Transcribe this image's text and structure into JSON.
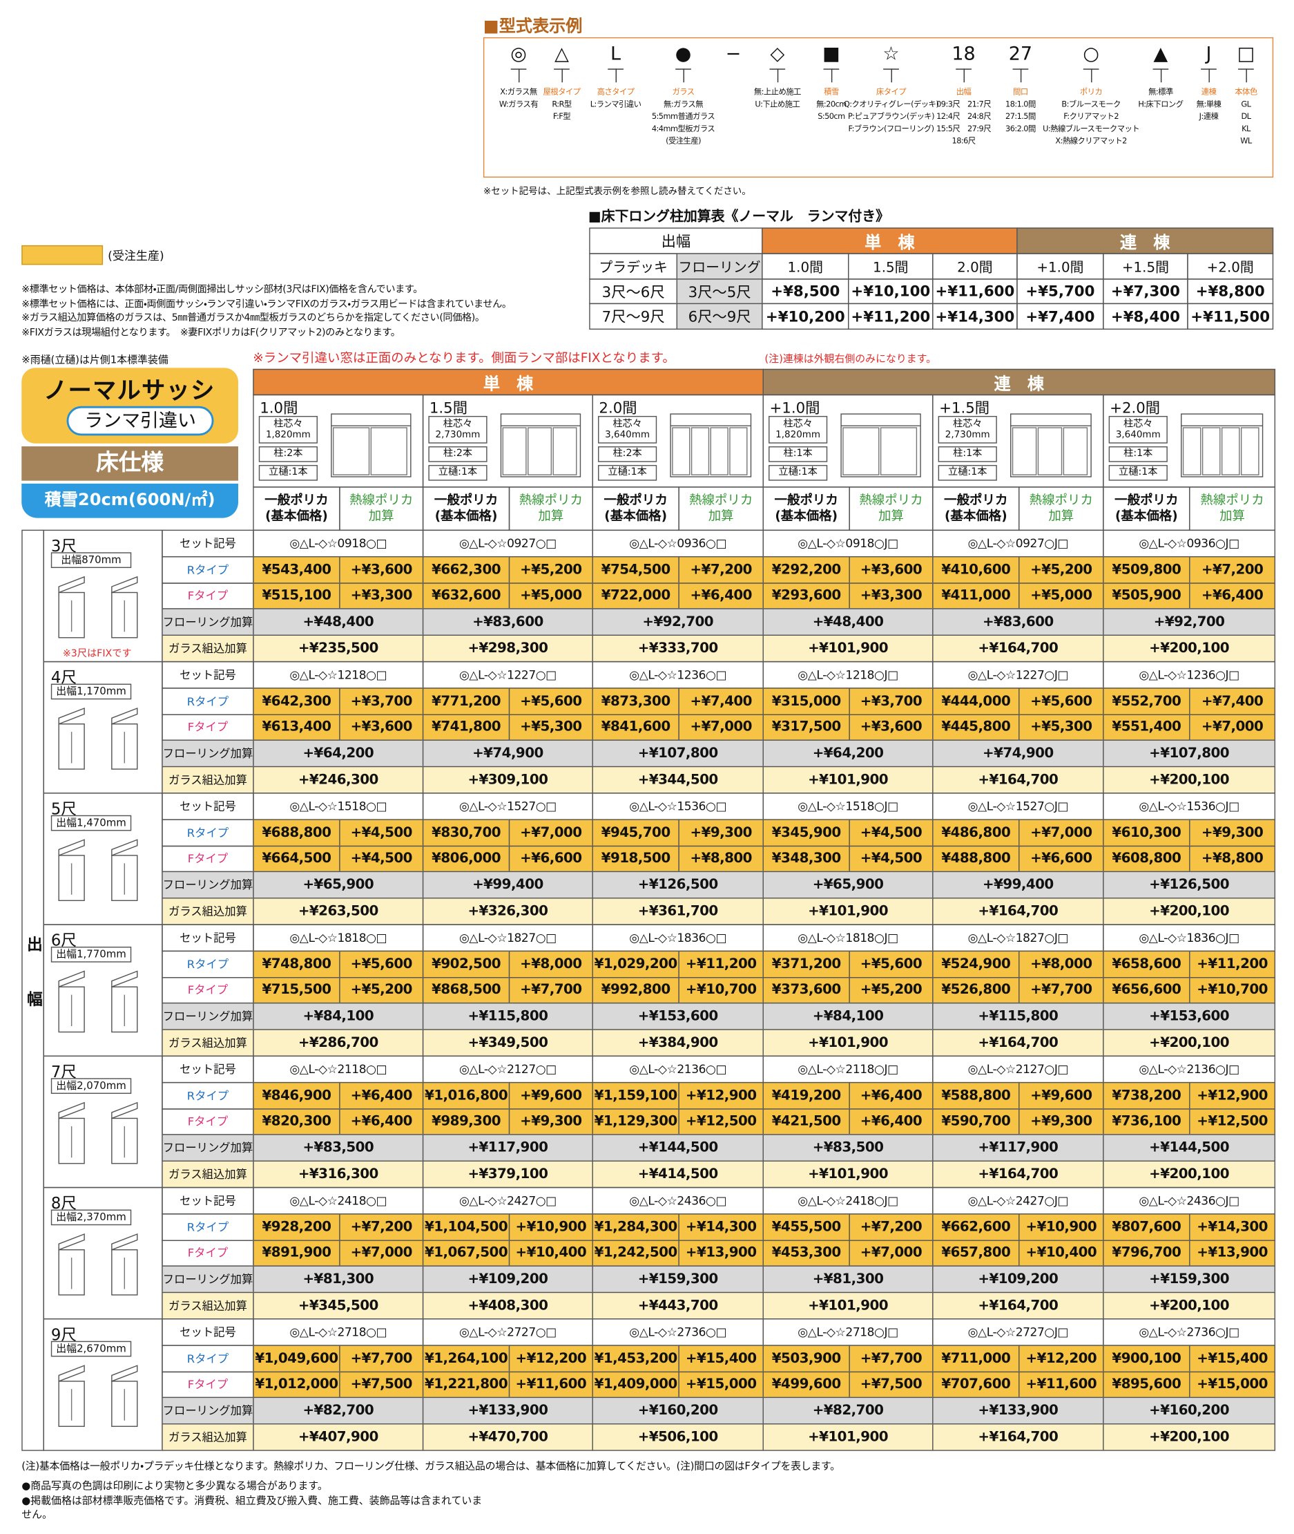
{
  "model_example": {
    "title": "■型式表示例",
    "items": [
      {
        "symbol": "◎",
        "options": [
          "X:ガラス無",
          "W:ガラス有"
        ]
      },
      {
        "symbol": "△",
        "category": "屋根タイプ",
        "options": [
          "R:R型",
          "F:F型"
        ]
      },
      {
        "symbol": "L",
        "category": "高さタイプ",
        "options": [
          "L:ランマ引違い"
        ]
      },
      {
        "symbol": "●",
        "category": "ガラス",
        "options": [
          "無:ガラス無",
          "5:5mm普通ガラス",
          "4:4mm型板ガラス",
          "(受注生産)"
        ]
      },
      {
        "symbol": "−"
      },
      {
        "symbol": "◇",
        "options": [
          "無:上止め施工",
          "U:下止め施工"
        ]
      },
      {
        "symbol": "■",
        "category": "積雪",
        "options": [
          "無:20cm",
          "S:50cm"
        ]
      },
      {
        "symbol": "☆",
        "category": "床タイプ",
        "options": [
          "Q:クオリティグレー(デッキ)",
          "P:ピュアブラウン(デッキ)",
          "F:ブラウン(フローリング)"
        ]
      },
      {
        "symbol": "18",
        "category": "出幅",
        "options": [
          "09:3尺　21:7尺",
          "12:4尺　24:8尺",
          "15:5尺　27:9尺",
          "18:6尺"
        ]
      },
      {
        "symbol": "27",
        "category": "間口",
        "options": [
          "18:1.0間",
          "27:1.5間",
          "36:2.0間"
        ]
      },
      {
        "symbol": "○",
        "category": "ポリカ",
        "options": [
          "B:ブルースモーク",
          "F:クリアマット2",
          "U:熱線ブルースモークマット",
          "X:熱線クリアマット2"
        ]
      },
      {
        "symbol": "▲",
        "options": [
          "無:標準",
          "H:床下ロング"
        ]
      },
      {
        "symbol": "J",
        "category": "連棟",
        "options": [
          "無:単棟",
          "J:連棟"
        ]
      },
      {
        "symbol": "□",
        "category": "本体色",
        "options": [
          "GL",
          "DL",
          "KL",
          "WL"
        ]
      }
    ],
    "note": "※セット記号は、上記型式表示例を参照し読み替えてください。"
  },
  "floor_long_table": {
    "title": "■床下ロング柱加算表《ノーマル　ランマ付き》",
    "header": {
      "width": "出幅",
      "single": "単　棟",
      "connected": "連　棟"
    },
    "subheader": [
      "プラデッキ",
      "フローリング",
      "1.0間",
      "1.5間",
      "2.0間",
      "+1.0間",
      "+1.5間",
      "+2.0間"
    ],
    "rows": [
      [
        "3尺〜6尺",
        "3尺〜5尺",
        "+¥8,500",
        "+¥10,100",
        "+¥11,600",
        "+¥5,700",
        "+¥7,300",
        "+¥8,800"
      ],
      [
        "7尺〜9尺",
        "6尺〜9尺",
        "+¥10,200",
        "+¥11,200",
        "+¥14,300",
        "+¥7,400",
        "+¥8,400",
        "+¥11,500"
      ]
    ]
  },
  "legend": {
    "label": "(受注生産)"
  },
  "notes": [
    "※標準セット価格は、本体部材・正面/両側面掃出しサッシ部材(3尺はFIX)価格を含んでいます。",
    "※標準セット価格には、正面・両側面サッシ・ランマ引違い・ランマFIXのガラス・ガラス用ビードは含まれていません。",
    "※ガラス組込加算価格のガラスは、5㎜普通ガラスか4㎜型板ガラスのどちらかを指定してください(同価格)。",
    "※FIXガラスは現場組付となります。　※妻FIXポリカはF(クリアマット2)のみとなります。"
  ],
  "gutter_note": "※雨樋(立樋)は片側1本標準装備",
  "lanma_note": "※ランマ引違い窓は正面のみとなります。側面ランマ部はFIXとなります。",
  "connected_note": "(注)連棟は外観右側のみになります。",
  "badge": {
    "sash": "ノーマルサッシ",
    "lanma": "ランマ引違い",
    "floor": "床仕様",
    "snow": "積雪20cm(600N/㎡)"
  },
  "price_table": {
    "width_label": "出幅",
    "single": "単　棟",
    "connected": "連　棟",
    "columns": [
      {
        "span": "1.0間",
        "pitch_label": "柱芯々",
        "pitch": "1,820mm",
        "posts": "柱:2本",
        "gutter": "立樋:1本"
      },
      {
        "span": "1.5間",
        "pitch_label": "柱芯々",
        "pitch": "2,730mm",
        "posts": "柱:2本",
        "gutter": "立樋:1本"
      },
      {
        "span": "2.0間",
        "pitch_label": "柱芯々",
        "pitch": "3,640mm",
        "posts": "柱:2本",
        "gutter": "立樋:1本"
      },
      {
        "span": "+1.0間",
        "pitch_label": "柱芯々",
        "pitch": "1,820mm",
        "posts": "柱:1本",
        "gutter": "立樋:1本"
      },
      {
        "span": "+1.5間",
        "pitch_label": "柱芯々",
        "pitch": "2,730mm",
        "posts": "柱:1本",
        "gutter": "立樋:1本"
      },
      {
        "span": "+2.0間",
        "pitch_label": "柱芯々",
        "pitch": "3,640mm",
        "posts": "柱:1本",
        "gutter": "立樋:1本"
      }
    ],
    "base_header": [
      "一般ポリカ",
      "(基本価格)"
    ],
    "add_header": [
      "熱線ポリカ",
      "加算"
    ],
    "row_labels": [
      "セット記号",
      "Rタイプ",
      "Fタイプ",
      "フローリング加算",
      "ガラス組込加算"
    ],
    "groups": [
      {
        "size": "3尺",
        "width": "出幅870mm",
        "note": "※3尺はFIXです",
        "set_codes": [
          "◎△L-◇☆0918○□",
          "◎△L-◇☆0927○□",
          "◎△L-◇☆0936○□",
          "◎△L-◇☆0918○J□",
          "◎△L-◇☆0927○J□",
          "◎△L-◇☆0936○J□"
        ],
        "r_type": [
          [
            "¥543,400",
            "+¥3,600"
          ],
          [
            "¥662,300",
            "+¥5,200"
          ],
          [
            "¥754,500",
            "+¥7,200"
          ],
          [
            "¥292,200",
            "+¥3,600"
          ],
          [
            "¥410,600",
            "+¥5,200"
          ],
          [
            "¥509,800",
            "+¥7,200"
          ]
        ],
        "f_type": [
          [
            "¥515,100",
            "+¥3,300"
          ],
          [
            "¥632,600",
            "+¥5,000"
          ],
          [
            "¥722,000",
            "+¥6,400"
          ],
          [
            "¥293,600",
            "+¥3,300"
          ],
          [
            "¥411,000",
            "+¥5,000"
          ],
          [
            "¥505,900",
            "+¥6,400"
          ]
        ],
        "flooring": [
          "+¥48,400",
          "+¥83,600",
          "+¥92,700",
          "+¥48,400",
          "+¥83,600",
          "+¥92,700"
        ],
        "glass": [
          "+¥235,500",
          "+¥298,300",
          "+¥333,700",
          "+¥101,900",
          "+¥164,700",
          "+¥200,100"
        ]
      },
      {
        "size": "4尺",
        "width": "出幅1,170mm",
        "set_codes": [
          "◎△L-◇☆1218○□",
          "◎△L-◇☆1227○□",
          "◎△L-◇☆1236○□",
          "◎△L-◇☆1218○J□",
          "◎△L-◇☆1227○J□",
          "◎△L-◇☆1236○J□"
        ],
        "r_type": [
          [
            "¥642,300",
            "+¥3,700"
          ],
          [
            "¥771,200",
            "+¥5,600"
          ],
          [
            "¥873,300",
            "+¥7,400"
          ],
          [
            "¥315,000",
            "+¥3,700"
          ],
          [
            "¥444,000",
            "+¥5,600"
          ],
          [
            "¥552,700",
            "+¥7,400"
          ]
        ],
        "f_type": [
          [
            "¥613,400",
            "+¥3,600"
          ],
          [
            "¥741,800",
            "+¥5,300"
          ],
          [
            "¥841,600",
            "+¥7,000"
          ],
          [
            "¥317,500",
            "+¥3,600"
          ],
          [
            "¥445,800",
            "+¥5,300"
          ],
          [
            "¥551,400",
            "+¥7,000"
          ]
        ],
        "flooring": [
          "+¥64,200",
          "+¥74,900",
          "+¥107,800",
          "+¥64,200",
          "+¥74,900",
          "+¥107,800"
        ],
        "glass": [
          "+¥246,300",
          "+¥309,100",
          "+¥344,500",
          "+¥101,900",
          "+¥164,700",
          "+¥200,100"
        ]
      },
      {
        "size": "5尺",
        "width": "出幅1,470mm",
        "set_codes": [
          "◎△L-◇☆1518○□",
          "◎△L-◇☆1527○□",
          "◎△L-◇☆1536○□",
          "◎△L-◇☆1518○J□",
          "◎△L-◇☆1527○J□",
          "◎△L-◇☆1536○J□"
        ],
        "r_type": [
          [
            "¥688,800",
            "+¥4,500"
          ],
          [
            "¥830,700",
            "+¥7,000"
          ],
          [
            "¥945,700",
            "+¥9,300"
          ],
          [
            "¥345,900",
            "+¥4,500"
          ],
          [
            "¥486,800",
            "+¥7,000"
          ],
          [
            "¥610,300",
            "+¥9,300"
          ]
        ],
        "f_type": [
          [
            "¥664,500",
            "+¥4,500"
          ],
          [
            "¥806,000",
            "+¥6,600"
          ],
          [
            "¥918,500",
            "+¥8,800"
          ],
          [
            "¥348,300",
            "+¥4,500"
          ],
          [
            "¥488,800",
            "+¥6,600"
          ],
          [
            "¥608,800",
            "+¥8,800"
          ]
        ],
        "flooring": [
          "+¥65,900",
          "+¥99,400",
          "+¥126,500",
          "+¥65,900",
          "+¥99,400",
          "+¥126,500"
        ],
        "glass": [
          "+¥263,500",
          "+¥326,300",
          "+¥361,700",
          "+¥101,900",
          "+¥164,700",
          "+¥200,100"
        ]
      },
      {
        "size": "6尺",
        "width": "出幅1,770mm",
        "set_codes": [
          "◎△L-◇☆1818○□",
          "◎△L-◇☆1827○□",
          "◎△L-◇☆1836○□",
          "◎△L-◇☆1818○J□",
          "◎△L-◇☆1827○J□",
          "◎△L-◇☆1836○J□"
        ],
        "r_type": [
          [
            "¥748,800",
            "+¥5,600"
          ],
          [
            "¥902,500",
            "+¥8,000"
          ],
          [
            "¥1,029,200",
            "+¥11,200"
          ],
          [
            "¥371,200",
            "+¥5,600"
          ],
          [
            "¥524,900",
            "+¥8,000"
          ],
          [
            "¥658,600",
            "+¥11,200"
          ]
        ],
        "f_type": [
          [
            "¥715,500",
            "+¥5,200"
          ],
          [
            "¥868,500",
            "+¥7,700"
          ],
          [
            "¥992,800",
            "+¥10,700"
          ],
          [
            "¥373,600",
            "+¥5,200"
          ],
          [
            "¥526,800",
            "+¥7,700"
          ],
          [
            "¥656,600",
            "+¥10,700"
          ]
        ],
        "flooring": [
          "+¥84,100",
          "+¥115,800",
          "+¥153,600",
          "+¥84,100",
          "+¥115,800",
          "+¥153,600"
        ],
        "glass": [
          "+¥286,700",
          "+¥349,500",
          "+¥384,900",
          "+¥101,900",
          "+¥164,700",
          "+¥200,100"
        ]
      },
      {
        "size": "7尺",
        "width": "出幅2,070mm",
        "set_codes": [
          "◎△L-◇☆2118○□",
          "◎△L-◇☆2127○□",
          "◎△L-◇☆2136○□",
          "◎△L-◇☆2118○J□",
          "◎△L-◇☆2127○J□",
          "◎△L-◇☆2136○J□"
        ],
        "r_type": [
          [
            "¥846,900",
            "+¥6,400"
          ],
          [
            "¥1,016,800",
            "+¥9,600"
          ],
          [
            "¥1,159,100",
            "+¥12,900"
          ],
          [
            "¥419,200",
            "+¥6,400"
          ],
          [
            "¥588,800",
            "+¥9,600"
          ],
          [
            "¥738,200",
            "+¥12,900"
          ]
        ],
        "f_type": [
          [
            "¥820,300",
            "+¥6,400"
          ],
          [
            "¥989,300",
            "+¥9,300"
          ],
          [
            "¥1,129,300",
            "+¥12,500"
          ],
          [
            "¥421,500",
            "+¥6,400"
          ],
          [
            "¥590,700",
            "+¥9,300"
          ],
          [
            "¥736,100",
            "+¥12,500"
          ]
        ],
        "flooring": [
          "+¥83,500",
          "+¥117,900",
          "+¥144,500",
          "+¥83,500",
          "+¥117,900",
          "+¥144,500"
        ],
        "glass": [
          "+¥316,300",
          "+¥379,100",
          "+¥414,500",
          "+¥101,900",
          "+¥164,700",
          "+¥200,100"
        ]
      },
      {
        "size": "8尺",
        "width": "出幅2,370mm",
        "set_codes": [
          "◎△L-◇☆2418○□",
          "◎△L-◇☆2427○□",
          "◎△L-◇☆2436○□",
          "◎△L-◇☆2418○J□",
          "◎△L-◇☆2427○J□",
          "◎△L-◇☆2436○J□"
        ],
        "r_type": [
          [
            "¥928,200",
            "+¥7,200"
          ],
          [
            "¥1,104,500",
            "+¥10,900"
          ],
          [
            "¥1,284,300",
            "+¥14,300"
          ],
          [
            "¥455,500",
            "+¥7,200"
          ],
          [
            "¥662,600",
            "+¥10,900"
          ],
          [
            "¥807,600",
            "+¥14,300"
          ]
        ],
        "f_type": [
          [
            "¥891,900",
            "+¥7,000"
          ],
          [
            "¥1,067,500",
            "+¥10,400"
          ],
          [
            "¥1,242,500",
            "+¥13,900"
          ],
          [
            "¥453,300",
            "+¥7,000"
          ],
          [
            "¥657,800",
            "+¥10,400"
          ],
          [
            "¥796,700",
            "+¥13,900"
          ]
        ],
        "flooring": [
          "+¥81,300",
          "+¥109,200",
          "+¥159,300",
          "+¥81,300",
          "+¥109,200",
          "+¥159,300"
        ],
        "glass": [
          "+¥345,500",
          "+¥408,300",
          "+¥443,700",
          "+¥101,900",
          "+¥164,700",
          "+¥200,100"
        ]
      },
      {
        "size": "9尺",
        "width": "出幅2,670mm",
        "set_codes": [
          "◎△L-◇☆2718○□",
          "◎△L-◇☆2727○□",
          "◎△L-◇☆2736○□",
          "◎△L-◇☆2718○J□",
          "◎△L-◇☆2727○J□",
          "◎△L-◇☆2736○J□"
        ],
        "r_type": [
          [
            "¥1,049,600",
            "+¥7,700"
          ],
          [
            "¥1,264,100",
            "+¥12,200"
          ],
          [
            "¥1,453,200",
            "+¥15,400"
          ],
          [
            "¥503,900",
            "+¥7,700"
          ],
          [
            "¥711,000",
            "+¥12,200"
          ],
          [
            "¥900,100",
            "+¥15,400"
          ]
        ],
        "f_type": [
          [
            "¥1,012,000",
            "+¥7,500"
          ],
          [
            "¥1,221,800",
            "+¥11,600"
          ],
          [
            "¥1,409,000",
            "+¥15,000"
          ],
          [
            "¥499,600",
            "+¥7,500"
          ],
          [
            "¥707,600",
            "+¥11,600"
          ],
          [
            "¥895,600",
            "+¥15,000"
          ]
        ],
        "flooring": [
          "+¥82,700",
          "+¥133,900",
          "+¥160,200",
          "+¥82,700",
          "+¥133,900",
          "+¥160,200"
        ],
        "glass": [
          "+¥407,900",
          "+¥470,700",
          "+¥506,100",
          "+¥101,900",
          "+¥164,700",
          "+¥200,100"
        ]
      }
    ]
  },
  "footer": [
    "(注)基本価格は一般ポリカ・プラデッキ仕様となります。熱線ポリカ、フローリング仕様、ガラス組込品の場合は、基本価格に加算してください。(注)間口の図はFタイプを表します。",
    "●商品写真の色調は印刷により実物と多少異なる場合があります。",
    "●掲載価格は部材標準販売価格です。消費税、組立費及び搬入費、施工費、装飾品等は含まれていません。"
  ]
}
